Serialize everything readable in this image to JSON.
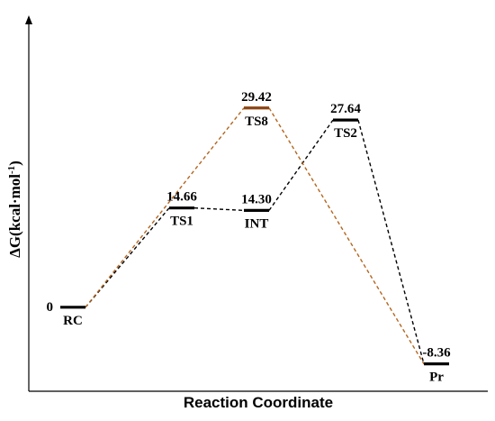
{
  "chart_data": {
    "type": "line",
    "xlabel": "Reaction Coordinate",
    "ylabel": "ΔG(kcal·mol",
    "ylabel_sup": "-1",
    "ylabel_close": ")",
    "ylim": [
      -12.4,
      41.9
    ],
    "grid": false,
    "states": [
      {
        "name": "RC",
        "value": 0,
        "value_label": "0",
        "slot": 0,
        "color": "#000000"
      },
      {
        "name": "TS1",
        "value": 14.66,
        "value_label": "14.66",
        "slot": 1,
        "color": "#000000"
      },
      {
        "name": "INT",
        "value": 14.3,
        "value_label": "14.30",
        "slot": 2,
        "color": "#000000"
      },
      {
        "name": "TS8",
        "value": 29.42,
        "value_label": "29.42",
        "slot": 2,
        "color": "#8b4513"
      },
      {
        "name": "TS2",
        "value": 27.64,
        "value_label": "27.64",
        "slot": 3,
        "color": "#000000"
      },
      {
        "name": "Pr",
        "value": -8.36,
        "value_label": "-8.36",
        "slot": 4,
        "color": "#000000"
      }
    ],
    "series": [
      {
        "path": [
          "RC",
          "TS1",
          "INT",
          "TS2",
          "Pr"
        ],
        "color": "#000000"
      },
      {
        "path": [
          "RC",
          "TS8",
          "Pr"
        ],
        "color": "#b5651d"
      }
    ]
  }
}
